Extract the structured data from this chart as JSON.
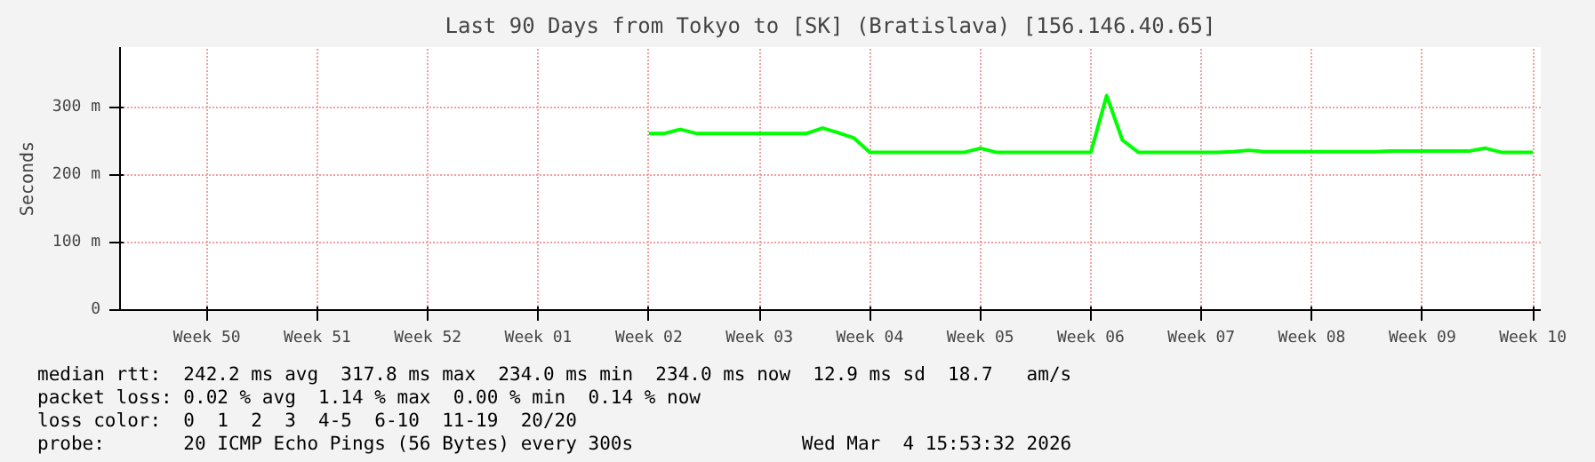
{
  "chart_data": {
    "type": "line",
    "title": "Last 90 Days from Tokyo to [SK] (Bratislava) [156.146.40.65]",
    "ylabel": "Seconds",
    "categories": [
      null,
      null,
      null,
      null,
      null,
      "Week 50",
      null,
      null,
      null,
      null,
      null,
      null,
      "Week 51",
      null,
      null,
      null,
      null,
      null,
      null,
      "Week 52",
      null,
      null,
      null,
      null,
      null,
      null,
      "Week 01",
      null,
      null,
      null,
      null,
      null,
      null,
      "Week 02",
      null,
      null,
      null,
      null,
      null,
      null,
      "Week 03",
      null,
      null,
      null,
      null,
      null,
      null,
      "Week 04",
      null,
      null,
      null,
      null,
      null,
      null,
      "Week 05",
      null,
      null,
      null,
      null,
      null,
      null,
      "Week 06",
      null,
      null,
      null,
      null,
      null,
      null,
      "Week 07",
      null,
      null,
      null,
      null,
      null,
      null,
      "Week 08",
      null,
      null,
      null,
      null,
      null,
      null,
      "Week 09",
      null,
      null,
      null,
      null,
      null,
      null,
      "Week 10"
    ],
    "series": [
      {
        "color": "#00ff00",
        "values": [
          null,
          null,
          null,
          null,
          null,
          null,
          null,
          null,
          null,
          null,
          null,
          null,
          null,
          null,
          null,
          null,
          null,
          null,
          null,
          null,
          null,
          null,
          null,
          null,
          null,
          null,
          null,
          null,
          null,
          null,
          null,
          null,
          null,
          262,
          262,
          268,
          262,
          262,
          262,
          262,
          262,
          262,
          262,
          262,
          270,
          263,
          255,
          234,
          234,
          234,
          234,
          234,
          234,
          234,
          240,
          234,
          234,
          234,
          234,
          234,
          234,
          234,
          318,
          252,
          234,
          234,
          234,
          234,
          234,
          234,
          235,
          237,
          235,
          235,
          235,
          235,
          235,
          235,
          235,
          235,
          236,
          236,
          236,
          236,
          236,
          236,
          240,
          234,
          234,
          234
        ]
      }
    ],
    "ylim": [
      0,
      390
    ],
    "yticks": [
      0,
      {
        "value": 100,
        "label": "100 m"
      },
      {
        "value": 200,
        "label": "200 m"
      },
      {
        "value": 300,
        "label": "300 m"
      }
    ],
    "grid": true,
    "annotations": [
      "median rtt:  242.2 ms avg  317.8 ms max  234.0 ms min  234.0 ms now  12.9 ms sd  18.7   am/s",
      "packet loss: 0.02 % avg  1.14 % max  0.00 % min  0.14 % now",
      "loss color:  0  1  2  3  4-5  6-10  11-19  20/20",
      "probe:       20 ICMP Echo Pings (56 Bytes) every 300s",
      "Wed Mar  4 15:53:32 2026"
    ]
  }
}
